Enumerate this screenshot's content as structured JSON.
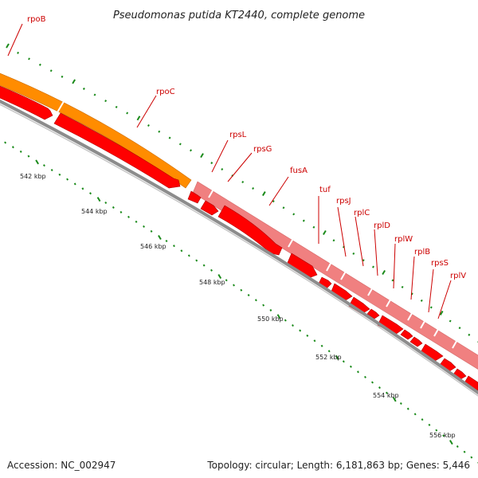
{
  "title": "Pseudomonas putida KT2440, complete genome",
  "accession_text": "Accession: NC_002947",
  "summary_text": "Topology: circular; Length: 6,181,863 bp; Genes: 5,446",
  "ticks": [
    {
      "label": "542 kbp"
    },
    {
      "label": "544 kbp"
    },
    {
      "label": "546 kbp"
    },
    {
      "label": "548 kbp"
    },
    {
      "label": "550 kbp"
    },
    {
      "label": "552 kbp"
    },
    {
      "label": "554 kbp"
    },
    {
      "label": "556 kbp"
    }
  ],
  "genes": [
    {
      "name": "rpoB"
    },
    {
      "name": "rpoC"
    },
    {
      "name": "rpsL"
    },
    {
      "name": "rpsG"
    },
    {
      "name": "fusA"
    },
    {
      "name": "tuf"
    },
    {
      "name": "rpsJ"
    },
    {
      "name": "rplC"
    },
    {
      "name": "rplD"
    },
    {
      "name": "rplW"
    },
    {
      "name": "rplB"
    },
    {
      "name": "rpsS"
    },
    {
      "name": "rplV"
    }
  ],
  "colors": {
    "operon_rpoBC": "#ff8c00",
    "operon_str": "#f08080",
    "cds": "#ff0000",
    "backbone": "#8c8c8c",
    "tick": "#1a8a1a",
    "label": "#cc0000"
  }
}
